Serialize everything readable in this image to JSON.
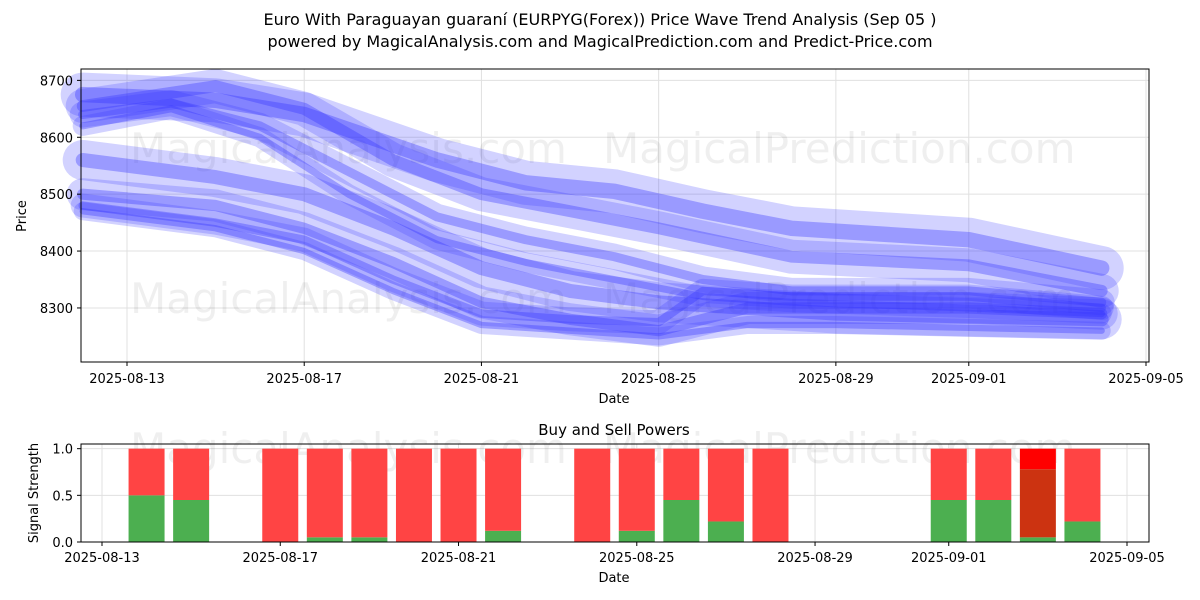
{
  "header": {
    "title_line1": "Euro With Paraguayan guaraní (EURPYG(Forex)) Price Wave Trend Analysis (Sep 05 )",
    "title_line2": "powered by MagicalAnalysis.com and MagicalPrediction.com and Predict-Price.com"
  },
  "watermarks": [
    "MagicalAnalysis.com",
    "MagicalPrediction.com"
  ],
  "colors": {
    "wave": "#3333ff",
    "buy": "#4caf50",
    "sell": "#ff4444",
    "sell_strong": "#ff0000",
    "buy_dark": "#cc3311"
  },
  "chart_data": [
    {
      "type": "line",
      "xlabel": "Date",
      "ylabel": "Price",
      "x_ticks": [
        "2025-08-13",
        "2025-08-17",
        "2025-08-21",
        "2025-08-25",
        "2025-08-29",
        "2025-09-01",
        "2025-09-05"
      ],
      "y_ticks": [
        8300,
        8400,
        8500,
        8600,
        8700
      ],
      "xlim": [
        "2025-08-12",
        "2025-09-05"
      ],
      "ylim": [
        8205,
        8720
      ],
      "grid": true,
      "series": [
        {
          "band": "upper",
          "x": [
            "2025-08-12",
            "2025-08-15",
            "2025-08-17",
            "2025-08-20",
            "2025-08-22",
            "2025-08-24",
            "2025-08-26",
            "2025-08-28",
            "2025-09-01",
            "2025-09-04"
          ],
          "y": [
            8675,
            8665,
            8640,
            8560,
            8520,
            8505,
            8470,
            8440,
            8420,
            8370
          ]
        },
        {
          "band": "upper",
          "x": [
            "2025-08-12",
            "2025-08-15",
            "2025-08-17",
            "2025-08-19",
            "2025-08-21",
            "2025-08-23",
            "2025-08-25",
            "2025-08-28",
            "2025-09-01",
            "2025-09-04"
          ],
          "y": [
            8655,
            8690,
            8650,
            8560,
            8500,
            8470,
            8440,
            8390,
            8375,
            8330
          ]
        },
        {
          "band": "upper",
          "x": [
            "2025-08-12",
            "2025-08-14",
            "2025-08-16",
            "2025-08-18",
            "2025-08-20",
            "2025-08-22",
            "2025-08-24",
            "2025-08-26",
            "2025-08-28",
            "2025-09-01",
            "2025-09-04"
          ],
          "y": [
            8640,
            8660,
            8620,
            8540,
            8460,
            8420,
            8390,
            8350,
            8330,
            8330,
            8310
          ]
        },
        {
          "band": "upper",
          "x": [
            "2025-08-12",
            "2025-08-14",
            "2025-08-16",
            "2025-08-18",
            "2025-08-20",
            "2025-08-22",
            "2025-08-24",
            "2025-08-26",
            "2025-08-28",
            "2025-09-01",
            "2025-09-04"
          ],
          "y": [
            8620,
            8650,
            8600,
            8500,
            8420,
            8380,
            8350,
            8320,
            8310,
            8300,
            8290
          ]
        },
        {
          "band": "lower",
          "x": [
            "2025-08-12",
            "2025-08-15",
            "2025-08-17",
            "2025-08-19",
            "2025-08-21",
            "2025-08-23",
            "2025-08-25",
            "2025-08-27",
            "2025-08-29",
            "2025-09-01",
            "2025-09-04"
          ],
          "y": [
            8560,
            8530,
            8500,
            8440,
            8370,
            8330,
            8310,
            8300,
            8290,
            8285,
            8280
          ]
        },
        {
          "band": "lower",
          "x": [
            "2025-08-12",
            "2025-08-15",
            "2025-08-17",
            "2025-08-19",
            "2025-08-21",
            "2025-08-23",
            "2025-08-25",
            "2025-08-27",
            "2025-08-29",
            "2025-09-01",
            "2025-09-04"
          ],
          "y": [
            8500,
            8480,
            8440,
            8380,
            8310,
            8280,
            8260,
            8300,
            8300,
            8300,
            8290
          ]
        },
        {
          "band": "lower",
          "x": [
            "2025-08-12",
            "2025-08-15",
            "2025-08-17",
            "2025-08-19",
            "2025-08-21",
            "2025-08-23",
            "2025-08-25",
            "2025-08-26",
            "2025-08-28",
            "2025-09-01",
            "2025-09-04"
          ],
          "y": [
            8480,
            8450,
            8420,
            8350,
            8290,
            8280,
            8275,
            8330,
            8320,
            8320,
            8300
          ]
        },
        {
          "band": "lower",
          "x": [
            "2025-08-12",
            "2025-08-15",
            "2025-08-17",
            "2025-08-19",
            "2025-08-21",
            "2025-08-23",
            "2025-08-25",
            "2025-08-27",
            "2025-08-29",
            "2025-09-01",
            "2025-09-04"
          ],
          "y": [
            8470,
            8440,
            8400,
            8330,
            8270,
            8260,
            8250,
            8270,
            8270,
            8265,
            8260
          ]
        }
      ]
    },
    {
      "type": "bar",
      "title": "Buy and Sell Powers",
      "xlabel": "Date",
      "ylabel": "Signal Strength",
      "x_ticks": [
        "2025-08-13",
        "2025-08-17",
        "2025-08-21",
        "2025-08-25",
        "2025-08-29",
        "2025-09-01",
        "2025-09-05"
      ],
      "y_ticks": [
        "0.0",
        "0.5",
        "1.0"
      ],
      "ylim": [
        0,
        1.05
      ],
      "grid": true,
      "categories": [
        "2025-08-14",
        "2025-08-15",
        "2025-08-17",
        "2025-08-18",
        "2025-08-19",
        "2025-08-20",
        "2025-08-21",
        "2025-08-22",
        "2025-08-24",
        "2025-08-25",
        "2025-08-26",
        "2025-08-27",
        "2025-08-28",
        "2025-09-01",
        "2025-09-02",
        "2025-09-03",
        "2025-09-04"
      ],
      "series": [
        {
          "name": "buy",
          "values": [
            0.5,
            0.45,
            0.0,
            0.05,
            0.05,
            0.0,
            0.0,
            0.12,
            0.0,
            0.12,
            0.45,
            0.22,
            0.0,
            0.45,
            0.45,
            0.05,
            0.22
          ]
        },
        {
          "name": "sell",
          "values": [
            0.5,
            0.55,
            1.0,
            0.95,
            0.95,
            1.0,
            1.0,
            0.88,
            1.0,
            0.88,
            0.55,
            0.78,
            1.0,
            0.55,
            0.55,
            0.95,
            0.78
          ]
        }
      ],
      "strong_bar": "2025-09-03"
    }
  ]
}
